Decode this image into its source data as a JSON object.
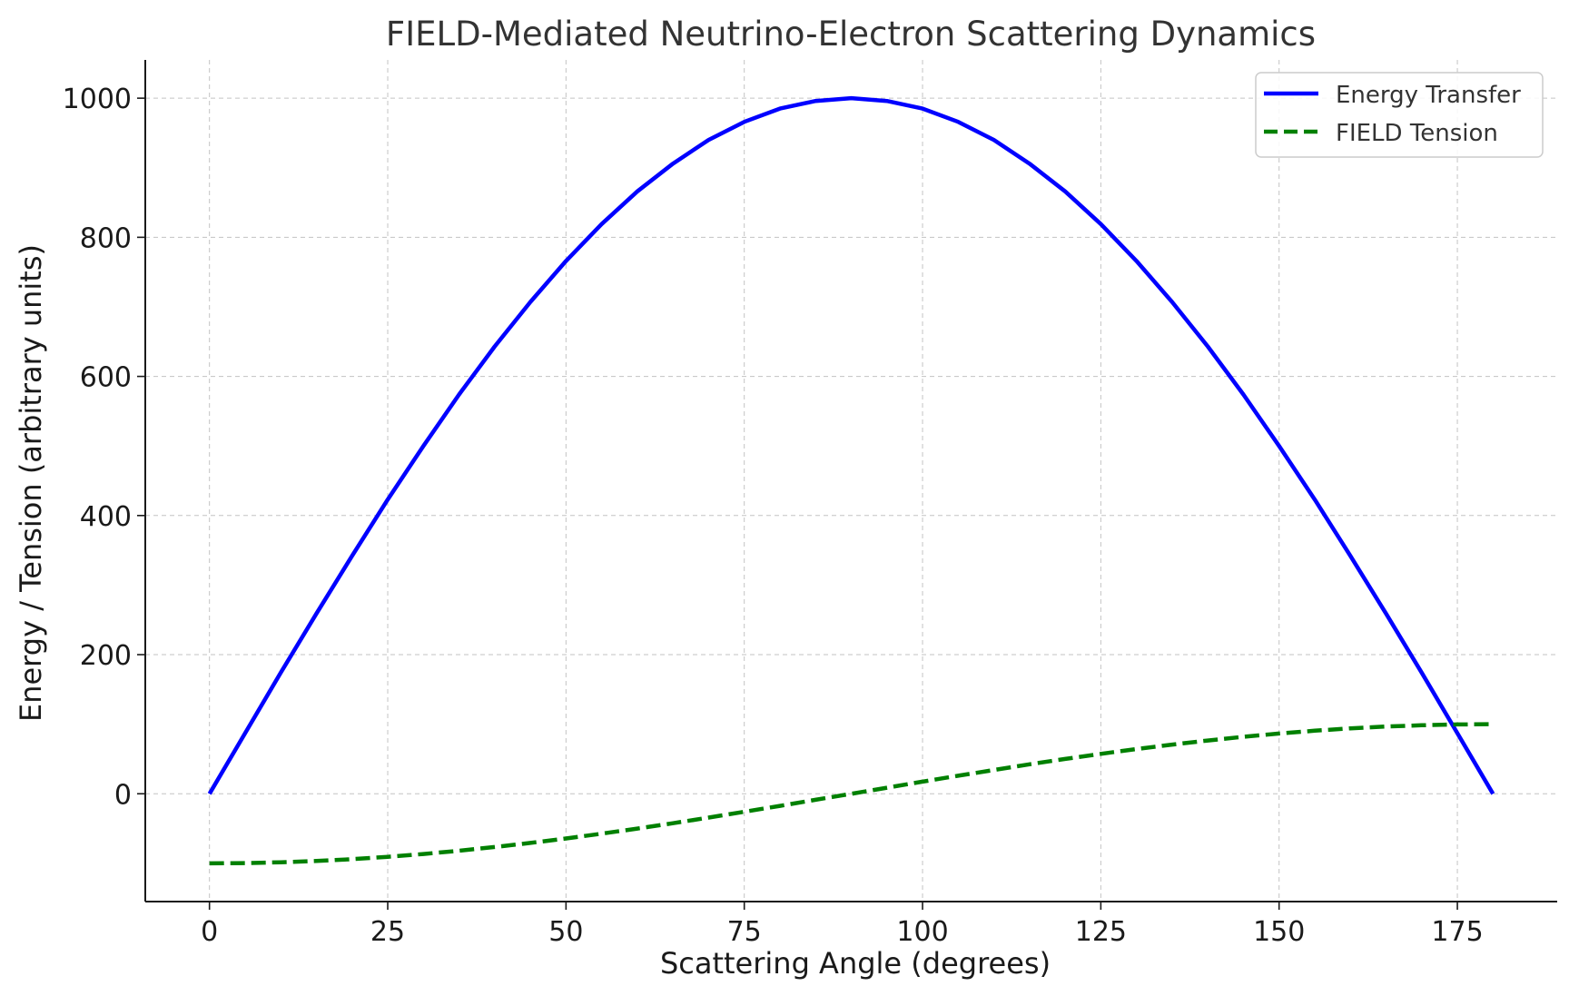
{
  "chart_data": {
    "type": "line",
    "title": "FIELD-Mediated Neutrino-Electron Scattering Dynamics",
    "xlabel": "Scattering Angle (degrees)",
    "ylabel": "Energy / Tension (arbitrary units)",
    "xlim": [
      -9,
      189
    ],
    "ylim": [
      -155,
      1055
    ],
    "xticks": [
      0,
      25,
      50,
      75,
      100,
      125,
      150,
      175
    ],
    "yticks": [
      0,
      200,
      400,
      600,
      800,
      1000
    ],
    "grid": true,
    "legend_position": "top-right",
    "x": [
      0,
      5,
      10,
      15,
      20,
      25,
      30,
      35,
      40,
      45,
      50,
      55,
      60,
      65,
      70,
      75,
      80,
      85,
      90,
      95,
      100,
      105,
      110,
      115,
      120,
      125,
      130,
      135,
      140,
      145,
      150,
      155,
      160,
      165,
      170,
      175,
      180
    ],
    "series": [
      {
        "name": "Energy Transfer",
        "color": "#0000ff",
        "style": "solid",
        "values": [
          0,
          87,
          174,
          259,
          342,
          423,
          500,
          574,
          643,
          707,
          766,
          819,
          866,
          906,
          940,
          966,
          985,
          996,
          1000,
          996,
          985,
          966,
          940,
          906,
          866,
          819,
          766,
          707,
          643,
          574,
          500,
          423,
          342,
          259,
          174,
          87,
          0
        ]
      },
      {
        "name": "FIELD Tension",
        "color": "#008000",
        "style": "dashed",
        "values": [
          -100,
          -99.6,
          -98.5,
          -96.6,
          -94,
          -90.6,
          -86.6,
          -81.9,
          -76.6,
          -70.7,
          -64.3,
          -57.4,
          -50,
          -42.3,
          -34.2,
          -25.9,
          -17.4,
          -8.7,
          0,
          8.7,
          17.4,
          25.9,
          34.2,
          42.3,
          50,
          57.4,
          64.3,
          70.7,
          76.6,
          81.9,
          86.6,
          90.6,
          94,
          96.6,
          98.5,
          99.6,
          100
        ]
      }
    ]
  }
}
